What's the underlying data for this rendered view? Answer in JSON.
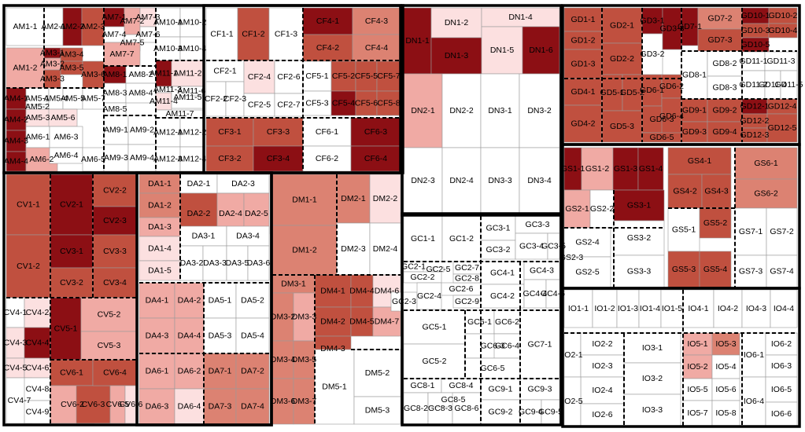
{
  "chart_data": {
    "type": "treemap",
    "legend": {
      "0": "#ffffff",
      "1": "#fce0e0",
      "2": "#f0aaa4",
      "3": "#dc8272",
      "4": "#c0503f",
      "5": "#8c0f14"
    },
    "labels": [
      "AM1-1",
      "AM1-2",
      "AM2-1",
      "AM2-2",
      "AM2-3",
      "AM3-1",
      "AM3-2",
      "AM3-3",
      "AM3-4",
      "AM3-5",
      "AM3-6",
      "AM4-1",
      "AM4-2",
      "AM4-3",
      "AM4-4",
      "AM5-1",
      "AM5-2",
      "AM5-3",
      "AM5-4",
      "AM5-5",
      "AM5-6",
      "AM5-7",
      "AM6-1",
      "AM6-2",
      "AM6-3",
      "AM6-4",
      "AM6-5",
      "AM7-1",
      "AM7-2",
      "AM7-3",
      "AM7-4",
      "AM7-5",
      "AM7-6",
      "AM7-7",
      "AM8-1",
      "AM8-2",
      "AM8-3",
      "AM8-4",
      "AM8-5",
      "AM9-1",
      "AM9-2",
      "AM9-3",
      "AM9-4",
      "AM10-1",
      "AM10-2",
      "AM10-3",
      "AM10-4",
      "AM11-1",
      "AM11-2",
      "AM11-3",
      "AM11-4",
      "AM11-5",
      "AM11-6",
      "AM11-7",
      "AM12-1",
      "AM12-2",
      "AM12-3",
      "AM12-4",
      "CF1-1",
      "CF1-2",
      "CF1-3",
      "CF2-1",
      "CF2-2",
      "CF2-3",
      "CF2-4",
      "CF2-5",
      "CF2-6",
      "CF2-7",
      "CF3-1",
      "CF3-2",
      "CF3-3",
      "CF3-4",
      "CF4-1",
      "CF4-2",
      "CF4-3",
      "CF4-4",
      "CF5-1",
      "CF5-2",
      "CF5-3",
      "CF5-4",
      "CF5-5",
      "CF5-6",
      "CF5-7",
      "CF5-8",
      "CF6-1",
      "CF6-2",
      "CF6-3",
      "CF6-4",
      "DN1-1",
      "DN1-2",
      "DN1-3",
      "DN1-4",
      "DN1-5",
      "DN1-6",
      "DN2-1",
      "DN2-2",
      "DN2-3",
      "DN2-4",
      "DN3-1",
      "DN3-2",
      "DN3-3",
      "DN3-4",
      "GD1-1",
      "GD1-2",
      "GD1-3",
      "GD2-1",
      "GD2-2",
      "GD3-1",
      "GD3-2",
      "GD3-3",
      "GD4-1",
      "GD4-2",
      "GD5-1",
      "GD5-2",
      "GD5-3",
      "GD6-1",
      "GD6-2",
      "GD6-3",
      "GD6-4",
      "GD6-5",
      "GD7-1",
      "GD7-2",
      "GD7-3",
      "GD8-1",
      "GD8-2",
      "GD8-3",
      "GD9-1",
      "GD9-2",
      "GD9-3",
      "GD9-4",
      "GD10-1",
      "GD10-2",
      "GD10-3",
      "GD10-4",
      "GD10-5",
      "GD11-1",
      "GD11-2",
      "GD11-3",
      "GD11-4",
      "GD11-5",
      "GD12-1",
      "GD12-2",
      "GD12-3",
      "GD12-4",
      "GD12-5",
      "CV1-1",
      "CV1-2",
      "CV2-1",
      "CV2-2",
      "CV2-3",
      "CV3-1",
      "CV3-2",
      "CV3-3",
      "CV3-4",
      "CV4-1",
      "CV4-2",
      "CV4-3",
      "CV4-4",
      "CV4-5",
      "CV4-6",
      "CV4-7",
      "CV4-8",
      "CV4-9",
      "CV5-1",
      "CV5-2",
      "CV5-3",
      "CV6-1",
      "CV6-2",
      "CV6-3",
      "CV6-4",
      "CV6-5",
      "CV6-6",
      "DA1-1",
      "DA1-2",
      "DA1-3",
      "DA1-4",
      "DA1-5",
      "DA2-1",
      "DA2-2",
      "DA2-3",
      "DA2-4",
      "DA2-5",
      "DA3-1",
      "DA3-2",
      "DA3-3",
      "DA3-4",
      "DA3-5",
      "DA3-6",
      "DA4-1",
      "DA4-2",
      "DA4-3",
      "DA4-4",
      "DA5-1",
      "DA5-2",
      "DA5-3",
      "DA5-4",
      "DA6-1",
      "DA6-2",
      "DA6-3",
      "DA6-4",
      "DA7-1",
      "DA7-2",
      "DA7-3",
      "DA7-4",
      "DM1-1",
      "DM1-2",
      "DM2-1",
      "DM2-2",
      "DM2-3",
      "DM2-4",
      "DM3-1",
      "DM3-2",
      "DM3-3",
      "DM3-4",
      "DM3-5",
      "DM3-6",
      "DM3-7",
      "DM4-1",
      "DM4-2",
      "DM4-3",
      "DM4-4",
      "DM4-5",
      "DM4-6",
      "DM4-7",
      "DM5-1",
      "DM5-2",
      "DM5-3",
      "GC1-1",
      "GC1-2",
      "GC2-1",
      "GC2-2",
      "GC2-3",
      "GC2-4",
      "GC2-5",
      "GC2-6",
      "GC2-7",
      "GC2-8",
      "GC2-9",
      "GC3-1",
      "GC3-2",
      "GC3-3",
      "GC3-4",
      "GC3-5",
      "GC4-1",
      "GC4-2",
      "GC4-3",
      "GC4-4",
      "GC4-5",
      "GC5-1",
      "GC5-2",
      "GC6-1",
      "GC6-2",
      "GC6-3",
      "GC6-4",
      "GC6-5",
      "GC7-1",
      "GC8-1",
      "GC8-2",
      "GC8-3",
      "GC8-4",
      "GC8-5",
      "GC8-6",
      "GC9-1",
      "GC9-2",
      "GC9-3",
      "GC9-4",
      "GC9-5",
      "GS1-1",
      "GS1-2",
      "GS1-3",
      "GS1-4",
      "GS2-1",
      "GS2-2",
      "GS2-3",
      "GS2-4",
      "GS2-5",
      "GS3-1",
      "GS3-2",
      "GS3-3",
      "GS4-1",
      "GS4-2",
      "GS4-3",
      "GS5-1",
      "GS5-2",
      "GS5-3",
      "GS5-4",
      "GS6-1",
      "GS6-2",
      "GS7-1",
      "GS7-2",
      "GS7-3",
      "GS7-4",
      "IO1-1",
      "IO1-2",
      "IO1-3",
      "IO1-4",
      "IO1-5",
      "IO2-1",
      "IO2-2",
      "IO2-3",
      "IO2-4",
      "IO2-5",
      "IO2-6",
      "IO3-1",
      "IO3-2",
      "IO3-3",
      "IO4-1",
      "IO4-2",
      "IO4-3",
      "IO4-4",
      "IO5-1",
      "IO5-2",
      "IO5-3",
      "IO5-4",
      "IO5-5",
      "IO5-6",
      "IO5-7",
      "IO5-8",
      "IO6-1",
      "IO6-2",
      "IO6-3",
      "IO6-4",
      "IO6-5",
      "IO6-6"
    ]
  }
}
